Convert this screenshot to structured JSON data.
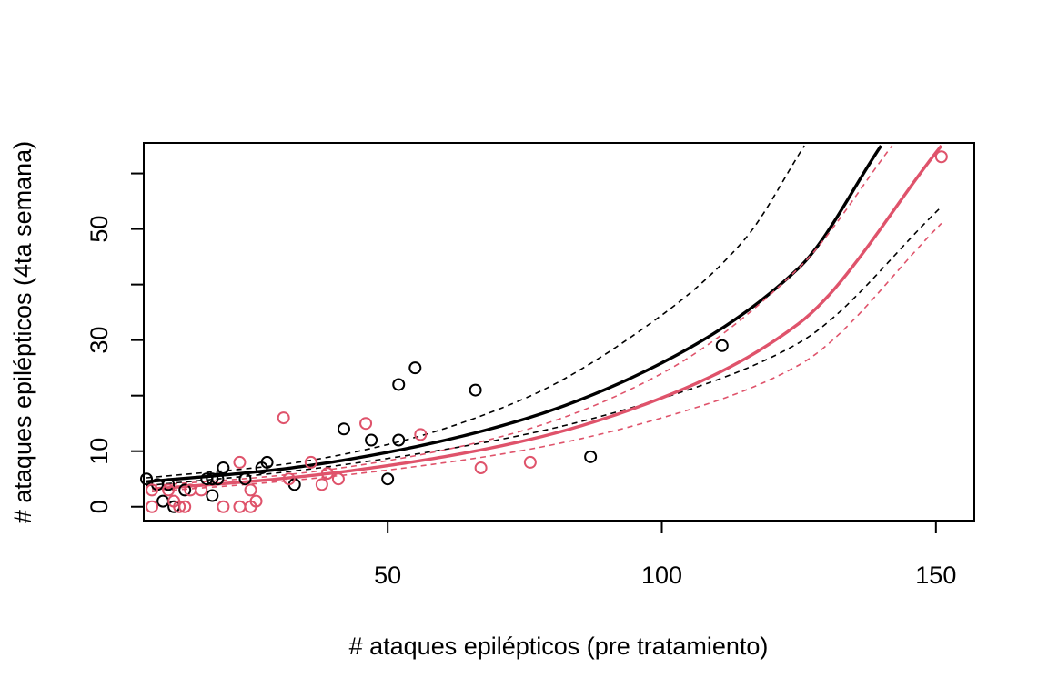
{
  "chart_data": {
    "type": "scatter",
    "xlabel": "# ataques epilépticos (pre tratamiento)",
    "ylabel": "# ataques epilépticos (4ta semana)",
    "xlim": [
      5.5,
      157
    ],
    "ylim": [
      -2.5,
      65.5
    ],
    "x_ticks": [
      50,
      100,
      150
    ],
    "y_ticks": [
      0,
      10,
      20,
      30,
      40,
      50,
      60
    ],
    "y_tick_labels": [
      "0",
      "10",
      "",
      "30",
      "",
      "50",
      ""
    ],
    "grid": false,
    "colors": {
      "black": "#000000",
      "red": "#DF536B"
    },
    "series": [
      {
        "color": "#000000",
        "points": [
          [
            6,
            5
          ],
          [
            8,
            4
          ],
          [
            9,
            1
          ],
          [
            10,
            4
          ],
          [
            11,
            0
          ],
          [
            13,
            3
          ],
          [
            17,
            5
          ],
          [
            18,
            5
          ],
          [
            18,
            2
          ],
          [
            19,
            5
          ],
          [
            20,
            7
          ],
          [
            24,
            5
          ],
          [
            27,
            7
          ],
          [
            28,
            8
          ],
          [
            33,
            4
          ],
          [
            42,
            14
          ],
          [
            47,
            12
          ],
          [
            50,
            5
          ],
          [
            52,
            22
          ],
          [
            52,
            12
          ],
          [
            55,
            25
          ],
          [
            66,
            21
          ],
          [
            87,
            9
          ],
          [
            111,
            29
          ]
        ],
        "fit": [
          [
            6,
            4.5
          ],
          [
            30,
            6.7
          ],
          [
            50,
            9.8
          ],
          [
            75,
            15.8
          ],
          [
            100,
            25.9
          ],
          [
            125,
            43.0
          ],
          [
            140,
            65.0
          ]
        ],
        "ci_lower": [
          [
            6,
            3.8
          ],
          [
            30,
            6.1
          ],
          [
            50,
            8.7
          ],
          [
            75,
            13.0
          ],
          [
            100,
            19.5
          ],
          [
            125,
            29.5
          ],
          [
            151,
            54.0
          ]
        ],
        "ci_upper": [
          [
            6,
            5.2
          ],
          [
            30,
            7.5
          ],
          [
            50,
            11.2
          ],
          [
            75,
            19.5
          ],
          [
            100,
            34.5
          ],
          [
            115,
            48.0
          ],
          [
            126,
            65.0
          ]
        ]
      },
      {
        "color": "#DF536B",
        "points": [
          [
            7,
            0
          ],
          [
            7,
            3
          ],
          [
            10,
            3
          ],
          [
            11,
            1
          ],
          [
            12,
            0
          ],
          [
            13,
            0
          ],
          [
            14,
            3
          ],
          [
            16,
            3
          ],
          [
            20,
            0
          ],
          [
            23,
            0
          ],
          [
            23,
            8
          ],
          [
            25,
            3
          ],
          [
            25,
            0
          ],
          [
            26,
            1
          ],
          [
            31,
            16
          ],
          [
            32,
            5
          ],
          [
            36,
            8
          ],
          [
            38,
            4
          ],
          [
            39,
            6
          ],
          [
            41,
            5
          ],
          [
            46,
            15
          ],
          [
            56,
            13
          ],
          [
            67,
            7
          ],
          [
            76,
            8
          ],
          [
            151,
            63
          ]
        ],
        "fit": [
          [
            7,
            3.2
          ],
          [
            30,
            5.0
          ],
          [
            50,
            7.4
          ],
          [
            75,
            11.9
          ],
          [
            100,
            19.6
          ],
          [
            125,
            33.0
          ],
          [
            151,
            65.0
          ]
        ],
        "ci_lower": [
          [
            7,
            2.7
          ],
          [
            30,
            4.5
          ],
          [
            50,
            6.6
          ],
          [
            75,
            10.2
          ],
          [
            100,
            16.0
          ],
          [
            125,
            25.5
          ],
          [
            151,
            51.0
          ]
        ],
        "ci_upper": [
          [
            7,
            3.8
          ],
          [
            30,
            5.6
          ],
          [
            50,
            8.3
          ],
          [
            75,
            13.8
          ],
          [
            100,
            24.0
          ],
          [
            125,
            43.0
          ],
          [
            142,
            65.0
          ]
        ]
      }
    ]
  }
}
